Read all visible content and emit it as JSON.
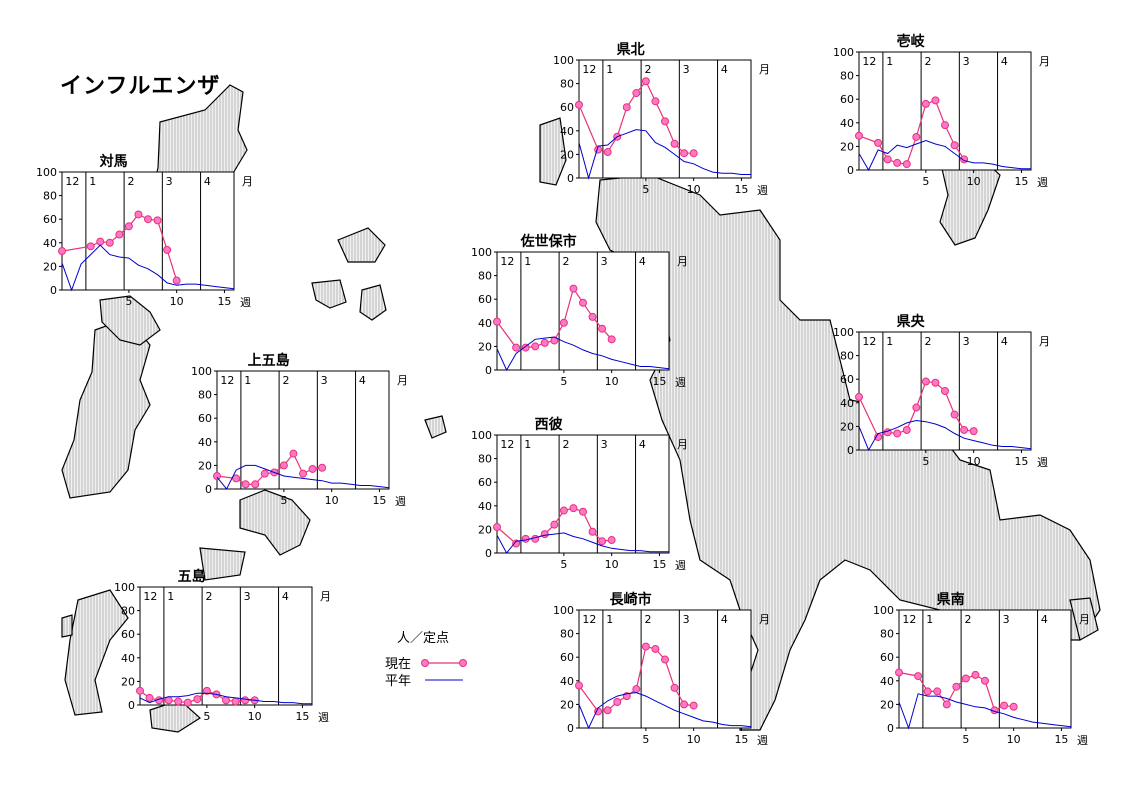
{
  "title": "インフルエンザ",
  "legend": {
    "unit": "人／定点",
    "current_label": "現在",
    "average_label": "平年",
    "current_color": "#e8337a",
    "current_marker_fill": "#ff77c8",
    "average_color": "#0000cc"
  },
  "chart_data": [
    {
      "type": "line",
      "title": "対馬",
      "month_labels": [
        "12",
        "1",
        "2",
        "3",
        "4",
        "月"
      ],
      "x_ticks": [
        5,
        10,
        15
      ],
      "x_unit": "週",
      "y_ticks": [
        0,
        20,
        40,
        60,
        80,
        100
      ],
      "ylim": [
        0,
        100
      ],
      "series": [
        {
          "name": "現在",
          "x": [
            -2,
            1,
            2,
            3,
            4,
            5,
            6,
            7,
            8,
            9,
            10
          ],
          "values": [
            33,
            37,
            41,
            40,
            47,
            54,
            64,
            60,
            59,
            34,
            8
          ]
        },
        {
          "name": "平年",
          "x": [
            -2,
            -1,
            0,
            1,
            2,
            3,
            4,
            5,
            6,
            7,
            8,
            9,
            10,
            11,
            12,
            13,
            14,
            15,
            16
          ],
          "values": [
            23,
            0,
            22,
            30,
            38,
            30,
            28,
            27,
            21,
            18,
            13,
            6,
            4,
            5,
            5,
            4,
            3,
            2,
            1
          ]
        }
      ]
    },
    {
      "type": "line",
      "title": "上五島",
      "month_labels": [
        "12",
        "1",
        "2",
        "3",
        "4",
        "月"
      ],
      "x_ticks": [
        5,
        10,
        15
      ],
      "x_unit": "週",
      "y_ticks": [
        0,
        20,
        40,
        60,
        80,
        100
      ],
      "ylim": [
        0,
        100
      ],
      "series": [
        {
          "name": "現在",
          "x": [
            -2,
            0,
            1,
            2,
            3,
            4,
            5,
            6,
            7,
            8,
            9
          ],
          "values": [
            11,
            9,
            4,
            4,
            13,
            14,
            20,
            30,
            13,
            17,
            18
          ]
        },
        {
          "name": "平年",
          "x": [
            -2,
            -1,
            0,
            1,
            2,
            3,
            4,
            5,
            6,
            7,
            8,
            9,
            10,
            11,
            12,
            13,
            14,
            15,
            16
          ],
          "values": [
            10,
            0,
            16,
            20,
            20,
            17,
            14,
            11,
            10,
            9,
            8,
            7,
            5,
            5,
            4,
            3,
            3,
            2,
            1
          ]
        }
      ]
    },
    {
      "type": "line",
      "title": "五島",
      "month_labels": [
        "12",
        "1",
        "2",
        "3",
        "4",
        "月"
      ],
      "x_ticks": [
        5,
        10,
        15
      ],
      "x_unit": "週",
      "y_ticks": [
        0,
        20,
        40,
        60,
        80,
        100
      ],
      "ylim": [
        0,
        100
      ],
      "series": [
        {
          "name": "現在",
          "x": [
            -2,
            -1,
            0,
            1,
            2,
            3,
            4,
            5,
            6,
            7,
            8,
            9,
            10
          ],
          "values": [
            12,
            6,
            4,
            4,
            3,
            2,
            5,
            12,
            9,
            4,
            3,
            4,
            4
          ]
        },
        {
          "name": "平年",
          "x": [
            -2,
            -1,
            0,
            1,
            2,
            3,
            4,
            5,
            6,
            7,
            8,
            9,
            10,
            11,
            12,
            13,
            14,
            15,
            16
          ],
          "values": [
            6,
            2,
            5,
            7,
            7,
            8,
            10,
            10,
            9,
            7,
            6,
            5,
            4,
            3,
            3,
            2,
            2,
            1,
            1
          ]
        }
      ]
    },
    {
      "type": "line",
      "title": "県北",
      "month_labels": [
        "12",
        "1",
        "2",
        "3",
        "4",
        "月"
      ],
      "x_ticks": [
        5,
        10,
        15
      ],
      "x_unit": "週",
      "y_ticks": [
        0,
        20,
        40,
        60,
        80,
        100
      ],
      "ylim": [
        0,
        100
      ],
      "series": [
        {
          "name": "現在",
          "x": [
            -2,
            0,
            1,
            2,
            3,
            4,
            5,
            6,
            7,
            8,
            9,
            10
          ],
          "values": [
            62,
            24,
            22,
            35,
            60,
            72,
            82,
            65,
            48,
            29,
            21,
            21
          ]
        },
        {
          "name": "平年",
          "x": [
            -2,
            -1,
            0,
            1,
            2,
            3,
            4,
            5,
            6,
            7,
            8,
            9,
            10,
            11,
            12,
            13,
            14,
            15,
            16
          ],
          "values": [
            30,
            0,
            27,
            28,
            35,
            38,
            41,
            40,
            30,
            26,
            20,
            14,
            12,
            8,
            5,
            4,
            4,
            3,
            3
          ]
        }
      ]
    },
    {
      "type": "line",
      "title": "壱岐",
      "month_labels": [
        "12",
        "1",
        "2",
        "3",
        "4",
        "月"
      ],
      "x_ticks": [
        5,
        10,
        15
      ],
      "x_unit": "週",
      "y_ticks": [
        0,
        20,
        40,
        60,
        80,
        100
      ],
      "ylim": [
        0,
        100
      ],
      "series": [
        {
          "name": "現在",
          "x": [
            -2,
            0,
            1,
            2,
            3,
            4,
            5,
            6,
            7,
            8,
            9
          ],
          "values": [
            29,
            23,
            9,
            6,
            5,
            28,
            56,
            59,
            38,
            21,
            9
          ]
        },
        {
          "name": "平年",
          "x": [
            -2,
            -1,
            0,
            1,
            2,
            3,
            4,
            5,
            6,
            7,
            8,
            9,
            10,
            11,
            12,
            13,
            14,
            15,
            16
          ],
          "values": [
            14,
            0,
            17,
            14,
            21,
            19,
            22,
            25,
            22,
            20,
            14,
            8,
            6,
            6,
            5,
            3,
            2,
            1,
            1
          ]
        }
      ]
    },
    {
      "type": "line",
      "title": "佐世保市",
      "month_labels": [
        "12",
        "1",
        "2",
        "3",
        "4",
        "月"
      ],
      "x_ticks": [
        5,
        10,
        15
      ],
      "x_unit": "週",
      "y_ticks": [
        0,
        20,
        40,
        60,
        80,
        100
      ],
      "ylim": [
        0,
        100
      ],
      "series": [
        {
          "name": "現在",
          "x": [
            -2,
            0,
            1,
            2,
            3,
            4,
            5,
            6,
            7,
            8,
            9,
            10
          ],
          "values": [
            41,
            19,
            19,
            20,
            23,
            25,
            40,
            69,
            57,
            45,
            35,
            26
          ]
        },
        {
          "name": "平年",
          "x": [
            -2,
            -1,
            0,
            1,
            2,
            3,
            4,
            5,
            6,
            7,
            8,
            9,
            10,
            11,
            12,
            13,
            14,
            15,
            16
          ],
          "values": [
            18,
            0,
            14,
            20,
            26,
            27,
            28,
            24,
            21,
            17,
            14,
            12,
            9,
            7,
            5,
            3,
            3,
            2,
            1
          ]
        }
      ]
    },
    {
      "type": "line",
      "title": "県央",
      "month_labels": [
        "12",
        "1",
        "2",
        "3",
        "4",
        "月"
      ],
      "x_ticks": [
        5,
        10,
        15
      ],
      "x_unit": "週",
      "y_ticks": [
        0,
        20,
        40,
        60,
        80,
        100
      ],
      "ylim": [
        0,
        100
      ],
      "series": [
        {
          "name": "現在",
          "x": [
            -2,
            0,
            1,
            2,
            3,
            4,
            5,
            6,
            7,
            8,
            9,
            10
          ],
          "values": [
            45,
            11,
            15,
            14,
            17,
            36,
            58,
            57,
            50,
            30,
            17,
            16
          ]
        },
        {
          "name": "平年",
          "x": [
            -2,
            -1,
            0,
            1,
            2,
            3,
            4,
            5,
            6,
            7,
            8,
            9,
            10,
            11,
            12,
            13,
            14,
            15,
            16
          ],
          "values": [
            20,
            0,
            14,
            16,
            19,
            23,
            25,
            24,
            22,
            19,
            14,
            10,
            8,
            6,
            4,
            3,
            3,
            2,
            1
          ]
        }
      ]
    },
    {
      "type": "line",
      "title": "西彼",
      "month_labels": [
        "12",
        "1",
        "2",
        "3",
        "4",
        "月"
      ],
      "x_ticks": [
        5,
        10,
        15
      ],
      "x_unit": "週",
      "y_ticks": [
        0,
        20,
        40,
        60,
        80,
        100
      ],
      "ylim": [
        0,
        100
      ],
      "series": [
        {
          "name": "現在",
          "x": [
            -2,
            0,
            1,
            2,
            3,
            4,
            5,
            6,
            7,
            8,
            9,
            10
          ],
          "values": [
            22,
            8,
            12,
            12,
            16,
            24,
            36,
            38,
            35,
            18,
            10,
            11
          ]
        },
        {
          "name": "平年",
          "x": [
            -2,
            -1,
            0,
            1,
            2,
            3,
            4,
            5,
            6,
            7,
            8,
            9,
            10,
            11,
            12,
            13,
            14,
            15,
            16
          ],
          "values": [
            15,
            0,
            10,
            11,
            13,
            15,
            16,
            17,
            14,
            12,
            9,
            6,
            4,
            3,
            2,
            2,
            1,
            1,
            1
          ]
        }
      ]
    },
    {
      "type": "line",
      "title": "長崎市",
      "month_labels": [
        "12",
        "1",
        "2",
        "3",
        "4",
        "月"
      ],
      "x_ticks": [
        5,
        10,
        15
      ],
      "x_unit": "週",
      "y_ticks": [
        0,
        20,
        40,
        60,
        80,
        100
      ],
      "ylim": [
        0,
        100
      ],
      "series": [
        {
          "name": "現在",
          "x": [
            -2,
            0,
            1,
            2,
            3,
            4,
            5,
            6,
            7,
            8,
            9,
            10
          ],
          "values": [
            36,
            14,
            15,
            22,
            27,
            33,
            69,
            67,
            58,
            34,
            20,
            19
          ]
        },
        {
          "name": "平年",
          "x": [
            -2,
            -1,
            0,
            1,
            2,
            3,
            4,
            5,
            6,
            7,
            8,
            9,
            10,
            11,
            12,
            13,
            14,
            15,
            16
          ],
          "values": [
            20,
            0,
            17,
            23,
            27,
            29,
            30,
            27,
            23,
            19,
            15,
            12,
            9,
            6,
            5,
            3,
            2,
            2,
            1
          ]
        }
      ]
    },
    {
      "type": "line",
      "title": "県南",
      "month_labels": [
        "12",
        "1",
        "2",
        "3",
        "4",
        "月"
      ],
      "x_ticks": [
        5,
        10,
        15
      ],
      "x_unit": "週",
      "y_ticks": [
        0,
        20,
        40,
        60,
        80,
        100
      ],
      "ylim": [
        0,
        100
      ],
      "series": [
        {
          "name": "現在",
          "x": [
            -2,
            0,
            1,
            2,
            3,
            4,
            5,
            6,
            7,
            8,
            9,
            10
          ],
          "values": [
            47,
            44,
            31,
            31,
            20,
            35,
            42,
            45,
            40,
            15,
            19,
            18
          ]
        },
        {
          "name": "平年",
          "x": [
            -2,
            -1,
            0,
            1,
            2,
            3,
            4,
            5,
            6,
            7,
            8,
            9,
            10,
            11,
            12,
            13,
            14,
            15,
            16
          ],
          "values": [
            22,
            0,
            29,
            27,
            27,
            25,
            22,
            20,
            18,
            17,
            14,
            12,
            9,
            7,
            5,
            4,
            3,
            2,
            1
          ]
        }
      ]
    }
  ]
}
